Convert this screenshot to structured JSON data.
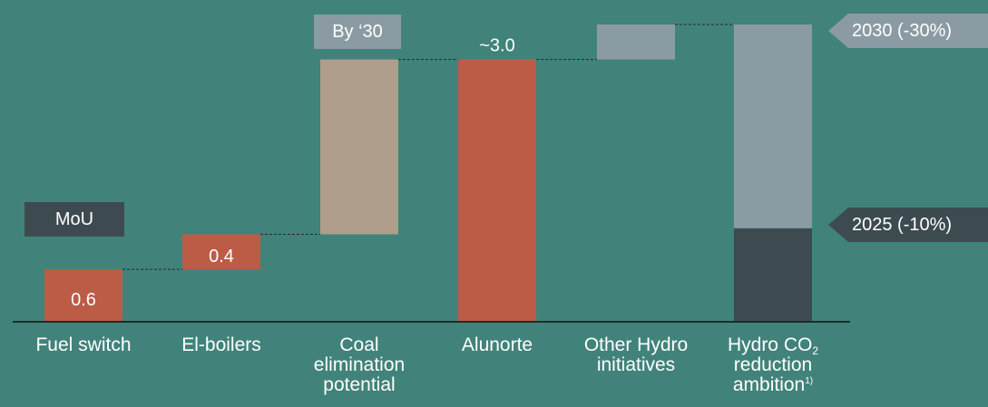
{
  "chart_data": {
    "type": "bar",
    "subtype": "waterfall",
    "categories": [
      "Fuel switch",
      "El-boilers",
      "Coal elimination potential",
      "Alunorte",
      "Other Hydro initiatives",
      "Hydro CO2 reduction ambition"
    ],
    "category_lines": [
      [
        "Fuel switch"
      ],
      [
        "El-boilers"
      ],
      [
        "Coal",
        "elimination",
        "potential"
      ],
      [
        "Alunorte"
      ],
      [
        "Other Hydro",
        "initiatives"
      ],
      [
        "Hydro CO",
        "reduction",
        "ambition"
      ]
    ],
    "category_footnote": "1)",
    "category_subscript": "2",
    "bars": [
      {
        "category": "Fuel switch",
        "start": 0,
        "end": 0.6,
        "label": "0.6",
        "color": "#bc5c47"
      },
      {
        "category": "El-boilers",
        "start": 0.6,
        "end": 1.0,
        "label": "0.4",
        "color": "#bc5c47"
      },
      {
        "category": "Coal elimination potential",
        "start": 1.0,
        "end": 3.0,
        "label": "",
        "color": "#ae9e8b"
      },
      {
        "category": "Alunorte",
        "start": 0,
        "end": 3.0,
        "label": "~3.0",
        "color": "#bc5c47"
      },
      {
        "category": "Other Hydro initiatives",
        "start": 3.0,
        "end": 3.4,
        "label": "",
        "color": "#8a9ba3"
      },
      {
        "category": "Hydro CO2 reduction ambition",
        "start": 0,
        "end": 1.07,
        "label": "",
        "color": "#3d4b51"
      },
      {
        "category": "Hydro CO2 reduction ambition",
        "start": 1.07,
        "end": 3.4,
        "label": "",
        "color": "#8a9ba3"
      }
    ],
    "connectors": true,
    "ylim": [
      0,
      3.4
    ],
    "grid": false
  },
  "annotations": {
    "mou": "MoU",
    "by_30": "By ‘30",
    "target_2030": "2030 (-30%)",
    "target_2025": "2025 (-10%)"
  },
  "colors": {
    "background": "#41837a",
    "hydro_red": "#bc5c47",
    "tan": "#ae9e8b",
    "grey": "#8a9ba3",
    "dark": "#3d4b51"
  }
}
